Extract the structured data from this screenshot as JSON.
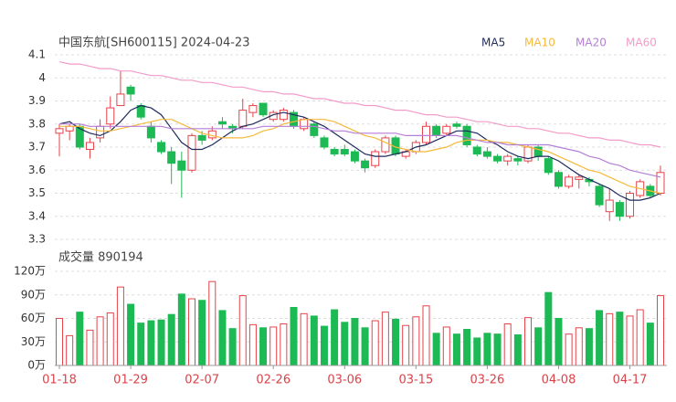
{
  "chart_data": [
    {
      "type": "candlestick",
      "title": "中国东航[SH600115] 2024-04-23",
      "up_color": "#e6434a",
      "down_color": "#1db954",
      "open": [
        3.76,
        3.77,
        3.79,
        3.69,
        3.74,
        3.8,
        3.88,
        3.96,
        3.88,
        3.79,
        3.72,
        3.68,
        3.64,
        3.6,
        3.75,
        3.74,
        3.81,
        3.79,
        3.79,
        3.85,
        3.89,
        3.82,
        3.82,
        3.85,
        3.78,
        3.8,
        3.74,
        3.69,
        3.69,
        3.68,
        3.64,
        3.62,
        3.68,
        3.74,
        3.66,
        3.68,
        3.72,
        3.79,
        3.76,
        3.8,
        3.79,
        3.7,
        3.68,
        3.66,
        3.64,
        3.65,
        3.64,
        3.7,
        3.65,
        3.59,
        3.53,
        3.56,
        3.56,
        3.53,
        3.42,
        3.46,
        3.4,
        3.49,
        3.53,
        3.5
      ],
      "high": [
        3.8,
        3.8,
        3.8,
        3.74,
        3.82,
        3.92,
        4.03,
        3.97,
        3.89,
        3.81,
        3.73,
        3.7,
        3.68,
        3.76,
        3.77,
        3.79,
        3.83,
        3.8,
        3.91,
        3.89,
        3.89,
        3.86,
        3.87,
        3.86,
        3.83,
        3.81,
        3.75,
        3.7,
        3.71,
        3.69,
        3.65,
        3.69,
        3.75,
        3.75,
        3.69,
        3.73,
        3.81,
        3.8,
        3.8,
        3.81,
        3.8,
        3.71,
        3.7,
        3.67,
        3.67,
        3.66,
        3.71,
        3.71,
        3.66,
        3.6,
        3.58,
        3.58,
        3.57,
        3.54,
        3.52,
        3.47,
        3.51,
        3.56,
        3.54,
        3.62
      ],
      "low": [
        3.66,
        3.73,
        3.69,
        3.65,
        3.72,
        3.78,
        3.88,
        3.9,
        3.82,
        3.72,
        3.67,
        3.54,
        3.48,
        3.59,
        3.71,
        3.73,
        3.78,
        3.76,
        3.78,
        3.83,
        3.83,
        3.81,
        3.81,
        3.78,
        3.77,
        3.74,
        3.69,
        3.66,
        3.66,
        3.63,
        3.59,
        3.61,
        3.67,
        3.66,
        3.65,
        3.67,
        3.71,
        3.74,
        3.75,
        3.78,
        3.7,
        3.66,
        3.65,
        3.63,
        3.62,
        3.62,
        3.63,
        3.64,
        3.58,
        3.52,
        3.52,
        3.52,
        3.53,
        3.44,
        3.38,
        3.38,
        3.39,
        3.48,
        3.48,
        3.49
      ],
      "close": [
        3.78,
        3.79,
        3.7,
        3.72,
        3.79,
        3.87,
        3.93,
        3.93,
        3.83,
        3.74,
        3.68,
        3.63,
        3.6,
        3.75,
        3.73,
        3.77,
        3.8,
        3.78,
        3.86,
        3.88,
        3.84,
        3.85,
        3.86,
        3.79,
        3.82,
        3.75,
        3.7,
        3.67,
        3.67,
        3.64,
        3.61,
        3.68,
        3.74,
        3.67,
        3.68,
        3.72,
        3.79,
        3.75,
        3.79,
        3.79,
        3.71,
        3.67,
        3.66,
        3.64,
        3.66,
        3.64,
        3.7,
        3.66,
        3.59,
        3.53,
        3.57,
        3.57,
        3.55,
        3.45,
        3.47,
        3.4,
        3.5,
        3.55,
        3.49,
        3.59
      ],
      "series": [
        {
          "name": "MA5",
          "color": "#1f2a5c",
          "values": [
            3.8,
            3.81,
            3.78,
            3.76,
            3.75,
            3.77,
            3.81,
            3.86,
            3.88,
            3.87,
            3.84,
            3.78,
            3.72,
            3.69,
            3.69,
            3.71,
            3.74,
            3.77,
            3.79,
            3.8,
            3.82,
            3.84,
            3.85,
            3.84,
            3.83,
            3.81,
            3.79,
            3.76,
            3.73,
            3.7,
            3.67,
            3.66,
            3.66,
            3.67,
            3.68,
            3.7,
            3.71,
            3.73,
            3.75,
            3.77,
            3.77,
            3.76,
            3.73,
            3.71,
            3.68,
            3.66,
            3.65,
            3.66,
            3.66,
            3.64,
            3.61,
            3.58,
            3.56,
            3.54,
            3.52,
            3.49,
            3.47,
            3.47,
            3.48,
            3.5
          ]
        },
        {
          "name": "MA10",
          "color": "#f5b93a",
          "values": [
            3.79,
            3.79,
            3.79,
            3.78,
            3.77,
            3.77,
            3.78,
            3.79,
            3.8,
            3.81,
            3.82,
            3.82,
            3.8,
            3.78,
            3.76,
            3.75,
            3.74,
            3.74,
            3.74,
            3.75,
            3.77,
            3.78,
            3.8,
            3.81,
            3.82,
            3.82,
            3.82,
            3.81,
            3.79,
            3.77,
            3.75,
            3.74,
            3.72,
            3.7,
            3.69,
            3.68,
            3.68,
            3.69,
            3.7,
            3.72,
            3.73,
            3.73,
            3.73,
            3.72,
            3.72,
            3.71,
            3.7,
            3.69,
            3.68,
            3.66,
            3.64,
            3.62,
            3.6,
            3.59,
            3.57,
            3.55,
            3.53,
            3.52,
            3.51,
            3.5
          ]
        },
        {
          "name": "MA20",
          "color": "#b57fd6",
          "values": [
            3.8,
            3.8,
            3.8,
            3.79,
            3.79,
            3.79,
            3.79,
            3.79,
            3.79,
            3.79,
            3.79,
            3.78,
            3.78,
            3.78,
            3.78,
            3.78,
            3.78,
            3.78,
            3.78,
            3.78,
            3.79,
            3.79,
            3.79,
            3.79,
            3.79,
            3.79,
            3.78,
            3.77,
            3.77,
            3.76,
            3.76,
            3.76,
            3.76,
            3.76,
            3.75,
            3.75,
            3.75,
            3.75,
            3.75,
            3.75,
            3.74,
            3.73,
            3.72,
            3.72,
            3.71,
            3.71,
            3.71,
            3.71,
            3.71,
            3.7,
            3.69,
            3.68,
            3.66,
            3.65,
            3.63,
            3.62,
            3.6,
            3.59,
            3.58,
            3.57
          ]
        },
        {
          "name": "MA60",
          "color": "#f29bc9",
          "values": [
            4.07,
            4.06,
            4.06,
            4.05,
            4.04,
            4.04,
            4.03,
            4.03,
            4.02,
            4.01,
            4.01,
            4.0,
            3.99,
            3.99,
            3.98,
            3.98,
            3.97,
            3.96,
            3.96,
            3.95,
            3.94,
            3.94,
            3.93,
            3.93,
            3.92,
            3.91,
            3.91,
            3.9,
            3.89,
            3.89,
            3.88,
            3.88,
            3.87,
            3.86,
            3.86,
            3.85,
            3.84,
            3.84,
            3.83,
            3.83,
            3.82,
            3.81,
            3.81,
            3.8,
            3.79,
            3.79,
            3.78,
            3.78,
            3.77,
            3.76,
            3.76,
            3.75,
            3.74,
            3.74,
            3.73,
            3.73,
            3.72,
            3.71,
            3.71,
            3.7
          ]
        }
      ],
      "ylim": [
        3.3,
        4.1
      ],
      "yticks": [
        3.3,
        3.4,
        3.5,
        3.6,
        3.7,
        3.8,
        3.9,
        4,
        4.1
      ],
      "grid": true
    },
    {
      "type": "bar",
      "title": "成交量 890194",
      "categories": [
        "01-18",
        null,
        null,
        null,
        null,
        null,
        null,
        "01-29",
        null,
        null,
        null,
        null,
        null,
        null,
        "02-07",
        null,
        null,
        null,
        null,
        null,
        null,
        "02-26",
        null,
        null,
        null,
        null,
        null,
        null,
        "03-06",
        null,
        null,
        null,
        null,
        null,
        null,
        "03-15",
        null,
        null,
        null,
        null,
        null,
        null,
        "03-26",
        null,
        null,
        null,
        null,
        null,
        null,
        "04-08",
        null,
        null,
        null,
        null,
        null,
        null,
        "04-17",
        null,
        null,
        null
      ],
      "values": [
        60,
        38,
        68,
        45,
        62,
        67,
        100,
        78,
        54,
        57,
        58,
        65,
        91,
        85,
        83,
        107,
        70,
        47,
        89,
        52,
        48,
        49,
        53,
        74,
        66,
        63,
        50,
        71,
        55,
        60,
        48,
        57,
        68,
        59,
        51,
        62,
        76,
        41,
        49,
        40,
        46,
        35,
        41,
        40,
        53,
        39,
        61,
        48,
        93,
        60,
        40,
        48,
        47,
        70,
        66,
        68,
        63,
        71,
        54,
        89
      ],
      "ylim": [
        0,
        120
      ],
      "yticks": [
        {
          "value": 0,
          "label": "0万"
        },
        {
          "value": 30,
          "label": "30万"
        },
        {
          "value": 60,
          "label": "60万"
        },
        {
          "value": 90,
          "label": "90万"
        },
        {
          "value": 120,
          "label": "120万"
        }
      ],
      "grid": true
    }
  ]
}
